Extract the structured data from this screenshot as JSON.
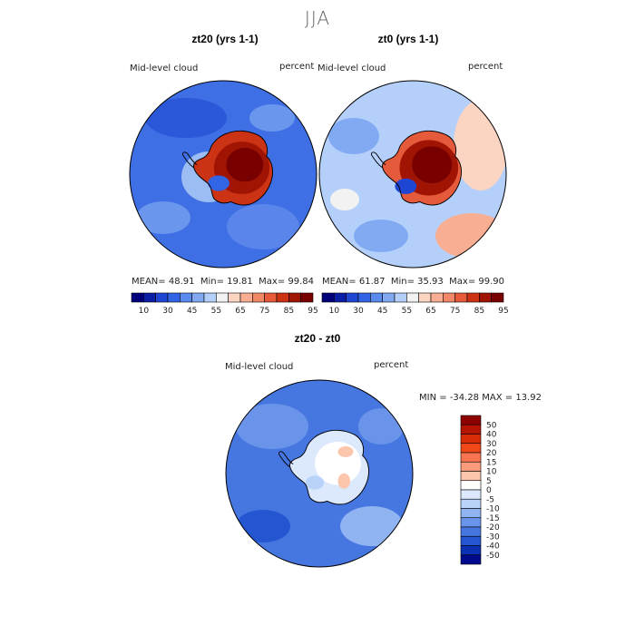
{
  "season_title": "JJA",
  "panels": [
    {
      "title": "zt20 (yrs 1-1)",
      "variable": "Mid-level cloud",
      "units": "percent",
      "stats": {
        "mean_label": "MEAN=",
        "mean": "48.91",
        "min_label": "Min=",
        "min": "19.81",
        "max_label": "Max=",
        "max": "99.84"
      }
    },
    {
      "title": "zt0 (yrs 1-1)",
      "variable": "Mid-level cloud",
      "units": "percent",
      "stats": {
        "mean_label": "MEAN=",
        "mean": "61.87",
        "min_label": "Min=",
        "min": "35.93",
        "max_label": "Max=",
        "max": "99.90"
      }
    }
  ],
  "abs_colorbar": {
    "colors": [
      "#00007a",
      "#0a1ea6",
      "#1e46d2",
      "#3264e6",
      "#5a8aee",
      "#82aaf2",
      "#b4d0fa",
      "#f2f2f2",
      "#fcd4c2",
      "#f8ae92",
      "#f08868",
      "#e45a3a",
      "#cc3214",
      "#a01404",
      "#780000"
    ],
    "labels": [
      "10",
      "30",
      "45",
      "55",
      "65",
      "75",
      "85",
      "95"
    ]
  },
  "diff_panel": {
    "title": "zt20 - zt0",
    "variable": "Mid-level cloud",
    "units": "percent",
    "min_label": "MIN =",
    "min": "-34.28",
    "max_label": "MAX =",
    "max": "13.92"
  },
  "diff_colorbar": {
    "colors": [
      "#8c0000",
      "#b41400",
      "#d82c08",
      "#f04818",
      "#f87450",
      "#fa9c7c",
      "#fcc6ac",
      "#ffffff",
      "#dce8fc",
      "#b8d2fa",
      "#90b4f2",
      "#6a94ea",
      "#4676e0",
      "#2456d2",
      "#0c30b4",
      "#000a8c"
    ],
    "labels": [
      "50",
      "40",
      "30",
      "20",
      "15",
      "10",
      "5",
      "0",
      "-5",
      "-10",
      "-15",
      "-20",
      "-30",
      "-40",
      "-50"
    ]
  },
  "map_colors": {
    "ocean_blue": "#3a6ee6",
    "ocean_light": "#6a9aee",
    "interior_red": "#a01404",
    "interior_dark": "#780000",
    "coast_line": "#000000"
  }
}
